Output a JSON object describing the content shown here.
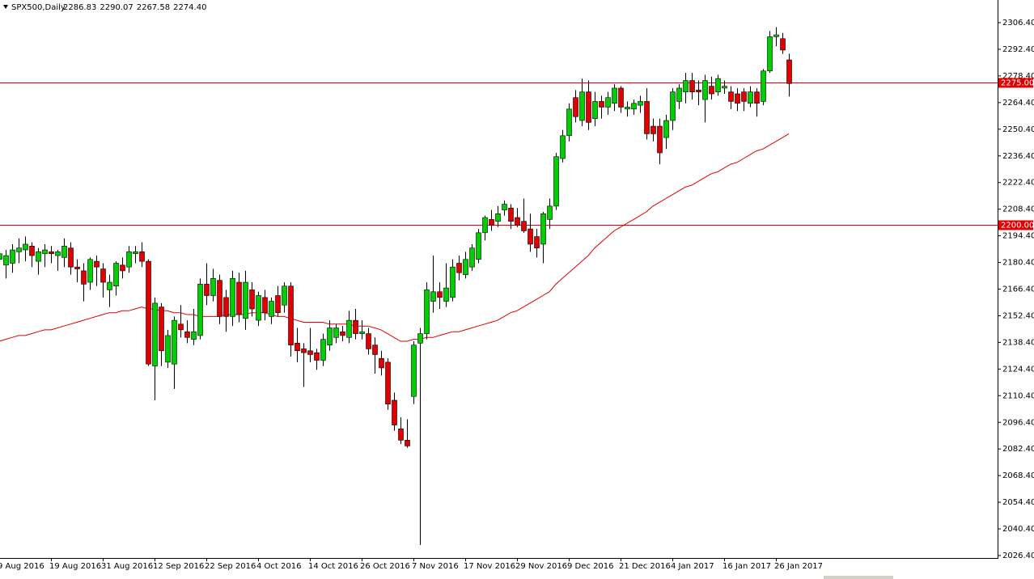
{
  "chart_data": {
    "type": "candlestick",
    "title": "SPX500,Daily",
    "ohlc_readout": [
      "2286.83",
      "2290.07",
      "2267.58",
      "2274.40"
    ],
    "up_color": "#00d000",
    "down_color": "#e00000",
    "categories": [
      "9 Aug 2016",
      null,
      null,
      null,
      null,
      null,
      null,
      null,
      "19 Aug 2016",
      null,
      null,
      null,
      null,
      null,
      null,
      null,
      "31 Aug 2016",
      null,
      null,
      null,
      null,
      null,
      null,
      null,
      "12 Sep 2016",
      null,
      null,
      null,
      null,
      null,
      null,
      null,
      "22 Sep 2016",
      null,
      null,
      null,
      null,
      null,
      null,
      null,
      "4 Oct 2016",
      null,
      null,
      null,
      null,
      null,
      null,
      null,
      "14 Oct 2016",
      null,
      null,
      null,
      null,
      null,
      null,
      null,
      "26 Oct 2016",
      null,
      null,
      null,
      null,
      null,
      null,
      null,
      "7 Nov 2016",
      null,
      null,
      null,
      null,
      null,
      null,
      null,
      "17 Nov 2016",
      null,
      null,
      null,
      null,
      null,
      null,
      null,
      "29 Nov 2016",
      null,
      null,
      null,
      null,
      null,
      null,
      null,
      "9 Dec 2016",
      null,
      null,
      null,
      null,
      null,
      null,
      null,
      "21 Dec 2016",
      null,
      null,
      null,
      null,
      null,
      null,
      null,
      "4 Jan 2017",
      null,
      null,
      null,
      null,
      null,
      null,
      null,
      "16 Jan 2017",
      null,
      null,
      null,
      null,
      null,
      null,
      null,
      "26 Jan 2017",
      null,
      null
    ],
    "open": [
      2182,
      2179,
      2180,
      2186,
      2187,
      2189,
      2181,
      2185,
      2186,
      2184,
      2183,
      2188,
      2178,
      2176,
      2170,
      2181,
      2177,
      2166,
      2168,
      2179,
      2178,
      2185,
      2186,
      2181,
      2126,
      2157,
      2128,
      2127,
      2148,
      2144,
      2140,
      2142,
      2169,
      2163,
      2171,
      2162,
      2152,
      2170,
      2151,
      2166,
      2150,
      2162,
      2152,
      2163,
      2158,
      2168,
      2138,
      2135,
      2134,
      2133,
      2129,
      2137,
      2141,
      2144,
      2141,
      2150,
      2143,
      2143,
      2137,
      2130,
      2128,
      2108,
      2093,
      2087,
      2110,
      2138,
      2143,
      2160,
      2165,
      2160,
      2162,
      2180,
      2174,
      2178,
      2182,
      2196,
      2203,
      2202,
      2208,
      2209,
      2204,
      2202,
      2198,
      2194,
      2190,
      2203,
      2210,
      2235,
      2247,
      2267,
      2255,
      2270,
      2256,
      2265,
      2262,
      2264,
      2272,
      2261,
      2261,
      2263,
      2265,
      2252,
      2252,
      2246,
      2255,
      2265,
      2270,
      2276,
      2271,
      2266,
      2273,
      2270,
      2272,
      2270,
      2269,
      2270,
      2264,
      2270,
      2265,
      2281,
      2299,
      2298,
      2286.83
    ],
    "high": [
      2188,
      2187,
      2190,
      2193,
      2194,
      2191,
      2188,
      2190,
      2189,
      2187,
      2193,
      2191,
      2182,
      2180,
      2183,
      2184,
      2180,
      2174,
      2181,
      2183,
      2189,
      2189,
      2191,
      2182,
      2162,
      2159,
      2145,
      2152,
      2158,
      2150,
      2156,
      2172,
      2180,
      2177,
      2174,
      2166,
      2176,
      2175,
      2176,
      2170,
      2165,
      2166,
      2162,
      2168,
      2170,
      2170,
      2146,
      2138,
      2146,
      2135,
      2143,
      2150,
      2148,
      2147,
      2155,
      2156,
      2150,
      2146,
      2141,
      2134,
      2130,
      2112,
      2099,
      2098,
      2139,
      2146,
      2170,
      2184,
      2170,
      2180,
      2182,
      2184,
      2186,
      2190,
      2198,
      2205,
      2208,
      2210,
      2213,
      2211,
      2209,
      2214,
      2206,
      2198,
      2207,
      2214,
      2238,
      2250,
      2264,
      2271,
      2277,
      2276,
      2270,
      2268,
      2270,
      2274,
      2273,
      2265,
      2266,
      2268,
      2272,
      2256,
      2256,
      2258,
      2272,
      2274,
      2280,
      2280,
      2276,
      2279,
      2278,
      2279,
      2276,
      2273,
      2272,
      2272,
      2273,
      2272,
      2282,
      2302,
      2304,
      2301,
      2290.07
    ],
    "low": [
      2176,
      2172,
      2175,
      2180,
      2181,
      2178,
      2174,
      2178,
      2180,
      2176,
      2178,
      2174,
      2170,
      2160,
      2166,
      2168,
      2162,
      2157,
      2163,
      2172,
      2175,
      2180,
      2178,
      2126,
      2108,
      2126,
      2125,
      2114,
      2141,
      2138,
      2137,
      2140,
      2158,
      2160,
      2148,
      2144,
      2147,
      2149,
      2145,
      2152,
      2147,
      2150,
      2148,
      2152,
      2154,
      2131,
      2128,
      2115,
      2128,
      2124,
      2126,
      2134,
      2138,
      2139,
      2138,
      2140,
      2140,
      2132,
      2122,
      2121,
      2103,
      2092,
      2085,
      2083,
      2106,
      2032,
      2140,
      2154,
      2156,
      2157,
      2160,
      2171,
      2172,
      2176,
      2180,
      2192,
      2197,
      2199,
      2205,
      2198,
      2199,
      2196,
      2186,
      2183,
      2180,
      2198,
      2208,
      2233,
      2244,
      2254,
      2252,
      2250,
      2252,
      2256,
      2258,
      2260,
      2259,
      2257,
      2258,
      2259,
      2245,
      2244,
      2232,
      2240,
      2250,
      2261,
      2264,
      2266,
      2263,
      2254,
      2266,
      2268,
      2269,
      2261,
      2260,
      2260,
      2262,
      2257,
      2263,
      2280,
      2294,
      2290,
      2267.58
    ],
    "close": [
      2185,
      2184,
      2187,
      2188,
      2190,
      2184,
      2186,
      2187,
      2185,
      2186,
      2189,
      2178,
      2177,
      2169,
      2182,
      2178,
      2170,
      2170,
      2180,
      2176,
      2186,
      2186,
      2181,
      2127,
      2159,
      2134,
      2142,
      2150,
      2145,
      2141,
      2144,
      2169,
      2163,
      2172,
      2152,
      2152,
      2172,
      2153,
      2170,
      2156,
      2163,
      2154,
      2160,
      2154,
      2168,
      2137,
      2134,
      2133,
      2132,
      2129,
      2140,
      2146,
      2146,
      2142,
      2150,
      2143,
      2144,
      2135,
      2132,
      2125,
      2106,
      2095,
      2087,
      2084,
      2137,
      2143,
      2166,
      2165,
      2162,
      2167,
      2178,
      2175,
      2182,
      2188,
      2196,
      2204,
      2200,
      2206,
      2211,
      2202,
      2200,
      2197,
      2190,
      2188,
      2206,
      2210,
      2236,
      2247,
      2261,
      2257,
      2270,
      2254,
      2265,
      2262,
      2267,
      2272,
      2262,
      2262,
      2264,
      2265,
      2248,
      2248,
      2238,
      2255,
      2270,
      2272,
      2276,
      2270,
      2270,
      2276,
      2269,
      2277,
      2273,
      2265,
      2264,
      2265,
      2270,
      2264,
      2281,
      2299,
      2300,
      2292,
      2274.4
    ],
    "ma": {
      "color": "#e00000",
      "values": [
        2139,
        2140,
        2141,
        2142,
        2142,
        2143,
        2144,
        2145,
        2145,
        2146,
        2147,
        2148,
        2149,
        2150,
        2151,
        2152,
        2153,
        2154,
        2154,
        2155,
        2155,
        2156,
        2157,
        2156,
        2156,
        2155,
        2155,
        2154,
        2154,
        2153,
        2153,
        2152,
        2152,
        2152,
        2152,
        2153,
        2153,
        2153,
        2153,
        2154,
        2154,
        2154,
        2153,
        2152,
        2152,
        2151,
        2150,
        2149,
        2149,
        2149,
        2149,
        2148,
        2148,
        2148,
        2148,
        2147,
        2147,
        2147,
        2146,
        2145,
        2143,
        2141,
        2139,
        2139,
        2140,
        2140,
        2141,
        2141,
        2142,
        2143,
        2144,
        2144,
        2145,
        2146,
        2147,
        2148,
        2149,
        2150,
        2152,
        2154,
        2155,
        2157,
        2159,
        2161,
        2163,
        2165,
        2169,
        2172,
        2175,
        2178,
        2181,
        2184,
        2188,
        2191,
        2194,
        2197,
        2199,
        2201,
        2203,
        2205,
        2207,
        2210,
        2212,
        2214,
        2216,
        2218,
        2220,
        2221,
        2223,
        2225,
        2227,
        2228,
        2230,
        2232,
        2233,
        2235,
        2237,
        2239,
        2240,
        2242,
        2244,
        2246,
        2248
      ]
    },
    "hlines": [
      {
        "value": 2275,
        "label": "2275.00",
        "color": "#e00000"
      },
      {
        "value": 2200,
        "label": "2200.00",
        "color": "#e00000"
      }
    ],
    "ylim": [
      2022,
      2318
    ],
    "yticks": [
      {
        "value": 2026.4,
        "label": "2026.40"
      },
      {
        "value": 2040.4,
        "label": "2040.40"
      },
      {
        "value": 2054.4,
        "label": "2054.40"
      },
      {
        "value": 2068.4,
        "label": "2068.40"
      },
      {
        "value": 2082.4,
        "label": "2082.40"
      },
      {
        "value": 2096.4,
        "label": "2096.40"
      },
      {
        "value": 2110.4,
        "label": "2110.40"
      },
      {
        "value": 2124.4,
        "label": "2124.40"
      },
      {
        "value": 2138.4,
        "label": "2138.40"
      },
      {
        "value": 2152.4,
        "label": "2152.40"
      },
      {
        "value": 2166.4,
        "label": "2166.40"
      },
      {
        "value": 2180.4,
        "label": "2180.40"
      },
      {
        "value": 2194.4,
        "label": "2194.40"
      },
      {
        "value": 2208.4,
        "label": "2208.40"
      },
      {
        "value": 2222.4,
        "label": "2222.40"
      },
      {
        "value": 2236.4,
        "label": "2236.40"
      },
      {
        "value": 2250.4,
        "label": "2250.40"
      },
      {
        "value": 2264.4,
        "label": "2264.40"
      },
      {
        "value": 2278.4,
        "label": "2278.40"
      },
      {
        "value": 2292.4,
        "label": "2292.40"
      },
      {
        "value": 2306.4,
        "label": "2306.40"
      }
    ]
  }
}
